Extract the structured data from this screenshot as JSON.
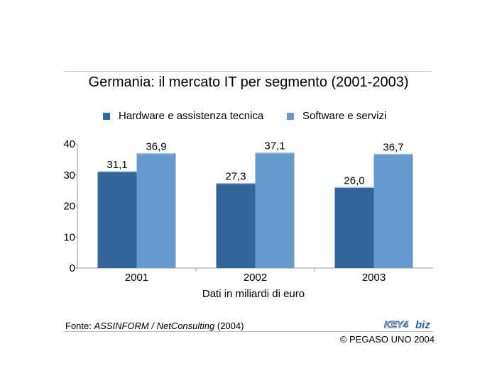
{
  "header": {
    "title": "Germania: il mercato IT per segmento (2001-2003)"
  },
  "colors": {
    "hardware": "#336699",
    "software": "#6699CC",
    "axis": "#9a9a9a"
  },
  "chart_data": {
    "type": "bar",
    "title": "Germania: il mercato IT per segmento (2001-2003)",
    "xlabel": "Dati in miliardi di euro",
    "ylabel": "",
    "categories": [
      "2001",
      "2002",
      "2003"
    ],
    "series": [
      {
        "name": "Hardware e assistenza tecnica",
        "values": [
          31.1,
          27.3,
          26.0
        ],
        "labels": [
          "31,1",
          "27,3",
          "26,0"
        ]
      },
      {
        "name": "Software e servizi",
        "values": [
          36.9,
          37.1,
          36.7
        ],
        "labels": [
          "36,9",
          "37,1",
          "36,7"
        ]
      }
    ],
    "ylim": [
      0,
      40
    ],
    "yticks": [
      0,
      10,
      20,
      30,
      40
    ],
    "grid": false,
    "legend": "top"
  },
  "footer": {
    "source_prefix": "Fonte: ",
    "source_italic": "ASSINFORM / NetConsulting",
    "source_suffix": " (2004)",
    "logo_key": "KEY4",
    "logo_biz": "biz",
    "copyright": "© PEGASO UNO 2004"
  }
}
